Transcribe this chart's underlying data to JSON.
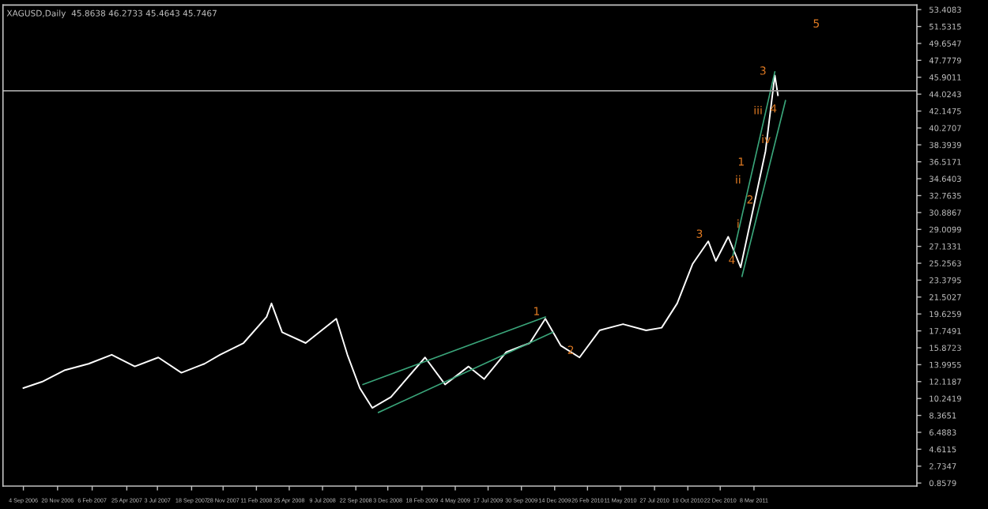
{
  "chart_data": {
    "type": "line",
    "title": "XAGUSD,Daily  45.8638 46.2733 45.4643 45.7467",
    "x": [
      "2006-09-04",
      "2006-10-16",
      "2006-12-07",
      "2007-01-29",
      "2007-03-22",
      "2007-05-13",
      "2007-07-05",
      "2007-08-26",
      "2007-10-17",
      "2007-11-21",
      "2008-01-13",
      "2008-03-05",
      "2008-03-16",
      "2008-04-09",
      "2008-06-01",
      "2008-08-09",
      "2008-09-03",
      "2008-10-01",
      "2008-10-29",
      "2008-12-10",
      "2009-02-25",
      "2009-04-11",
      "2009-06-03",
      "2009-07-08",
      "2009-08-27",
      "2009-10-19",
      "2009-11-23",
      "2009-12-28",
      "2010-02-08",
      "2010-03-25",
      "2010-05-17",
      "2010-07-08",
      "2010-08-12",
      "2010-09-16",
      "2010-10-21",
      "2010-11-25",
      "2010-12-12",
      "2011-01-09",
      "2011-02-06",
      "2011-03-09",
      "2011-04-03",
      "2011-04-24",
      "2011-05-01"
    ],
    "series": [
      {
        "color": "#ffffff",
        "values": [
          11.4,
          12.1,
          13.4,
          14.1,
          15.1,
          13.8,
          14.8,
          13.1,
          14.1,
          15.1,
          16.4,
          19.3,
          20.8,
          17.6,
          16.4,
          19.1,
          15.1,
          11.4,
          9.2,
          10.4,
          14.8,
          11.8,
          13.8,
          12.4,
          15.4,
          16.4,
          19.1,
          16.1,
          14.8,
          17.8,
          18.5,
          17.8,
          18.1,
          20.8,
          25.2,
          27.7,
          25.5,
          28.2,
          24.8,
          31.9,
          37.7,
          46.1,
          43.9
        ]
      },
      {
        "type": "line",
        "color": "#3aa57a",
        "x": [
          "2008-10-08",
          "2009-11-23"
        ],
        "values": [
          11.8,
          19.3
        ]
      },
      {
        "type": "line",
        "color": "#3aa57a",
        "x": [
          "2008-11-12",
          "2009-12-10"
        ],
        "values": [
          8.7,
          17.6
        ]
      },
      {
        "type": "line",
        "color": "#3aa57a",
        "x": [
          "2011-01-19",
          "2011-04-24"
        ],
        "values": [
          26.0,
          46.5
        ]
      },
      {
        "type": "line",
        "color": "#3aa57a",
        "x": [
          "2011-02-09",
          "2011-05-18"
        ],
        "values": [
          23.8,
          43.3
        ]
      }
    ],
    "annotations": [
      {
        "text": "1",
        "x": "2009-11-23",
        "y": 19.1
      },
      {
        "text": "2",
        "x": "2010-02-08",
        "y": 14.8
      },
      {
        "text": "3",
        "x": "2010-11-25",
        "y": 27.7
      },
      {
        "text": "4",
        "x": "2011-02-06",
        "y": 24.8
      },
      "5",
      {
        "text": "1",
        "x": "2011-02-27",
        "y": 35.7
      },
      {
        "text": "2",
        "x": "2011-03-19",
        "y": 31.5
      },
      {
        "text": "3",
        "x": "2011-04-17",
        "y": 45.8
      },
      {
        "text": "4",
        "x": "2011-05-11",
        "y": 41.6
      },
      {
        "text": "i",
        "x": "2011-02-20",
        "y": 28.8
      },
      {
        "text": "ii",
        "x": "2011-02-20",
        "y": 33.7
      },
      {
        "text": "iii",
        "x": "2011-04-06",
        "y": 41.4
      },
      {
        "text": "iv",
        "x": "2011-04-24",
        "y": 38.2
      }
    ],
    "ref_lines": [
      {
        "axis": "y",
        "value": 44.4,
        "color": "#a0a0a0"
      }
    ],
    "xlim": [
      "2006-07-20",
      "2012-03-09"
    ],
    "xticks": [
      {
        "value": "2006-09-04",
        "label": "4 Sep 2006"
      },
      {
        "value": "2006-11-20",
        "label": "20 Nov 2006"
      },
      {
        "value": "2007-02-06",
        "label": "6 Feb 2007"
      },
      {
        "value": "2007-04-25",
        "label": "25 Apr 2007"
      },
      {
        "value": "2007-07-03",
        "label": "3 Jul 2007"
      },
      {
        "value": "2007-09-18",
        "label": "18 Sep 2007"
      },
      {
        "value": "2007-11-28",
        "label": "28 Nov 2007"
      },
      {
        "value": "2008-02-11",
        "label": "11 Feb 2008"
      },
      {
        "value": "2008-04-25",
        "label": "25 Apr 2008"
      },
      {
        "value": "2008-07-09",
        "label": "9 Jul 2008"
      },
      {
        "value": "2008-09-22",
        "label": "22 Sep 2008"
      },
      {
        "value": "2008-12-03",
        "label": "3 Dec 2008"
      },
      {
        "value": "2009-02-18",
        "label": "18 Feb 2009"
      },
      {
        "value": "2009-05-04",
        "label": "4 May 2009"
      },
      {
        "value": "2009-07-17",
        "label": "17 Jul 2009"
      },
      {
        "value": "2009-09-30",
        "label": "30 Sep 2009"
      },
      {
        "value": "2009-12-14",
        "label": "14 Dec 2009"
      },
      {
        "value": "2010-02-26",
        "label": "26 Feb 2010"
      },
      {
        "value": "2010-05-11",
        "label": "11 May 2010"
      },
      {
        "value": "2010-07-27",
        "label": "27 Jul 2010"
      },
      {
        "value": "2010-10-10",
        "label": "10 Oct 2010"
      },
      {
        "value": "2010-12-22",
        "label": "22 Dec 2010"
      },
      {
        "value": "2011-03-08",
        "label": "8 Mar 2011"
      }
    ],
    "ylim": [
      0.52,
      53.91
    ],
    "yticks": [
      0.8579,
      2.7347,
      4.6115,
      6.4883,
      8.3651,
      10.2419,
      12.1187,
      13.9955,
      15.8723,
      17.7491,
      19.6259,
      21.5027,
      23.3795,
      25.2563,
      27.1331,
      29.0099,
      30.8867,
      32.7635,
      34.6403,
      36.5171,
      38.3939,
      40.2707,
      42.1475,
      44.0243,
      45.9011,
      47.7779,
      49.6547,
      51.5315,
      53.4083
    ],
    "grid": false,
    "legend": false,
    "marker": "none",
    "line_style": "solid"
  }
}
